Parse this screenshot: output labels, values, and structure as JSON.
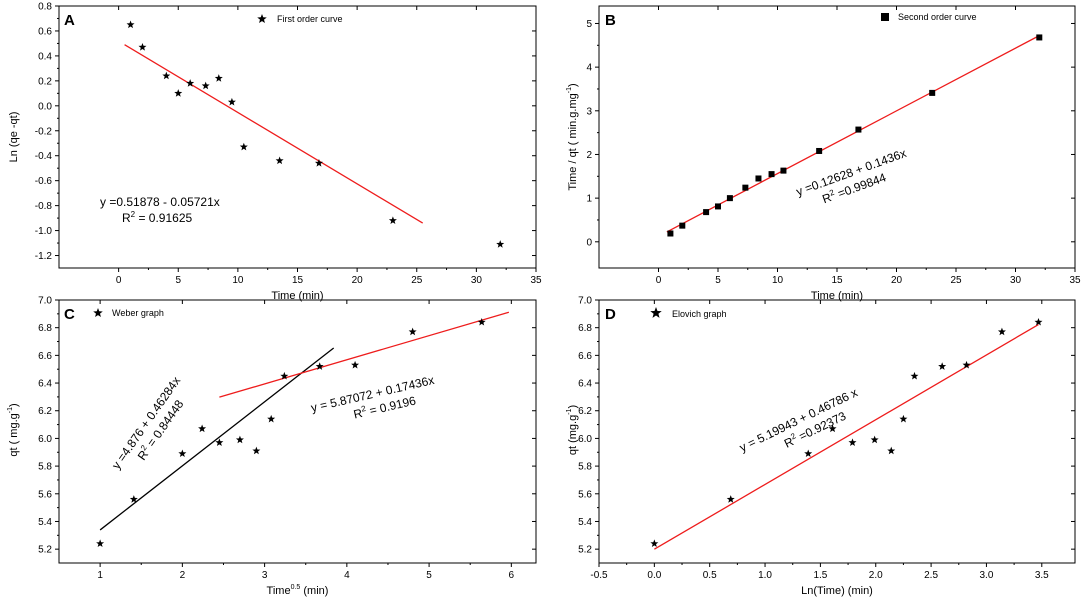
{
  "colors": {
    "fit_red": "#ee1c1c",
    "fit_black": "#000000",
    "axis": "#000000"
  },
  "chart_data": [
    {
      "panel": "A",
      "type": "scatter",
      "legend": "First order curve",
      "legend_marker": "star-icon",
      "xlabel": "Time (min)",
      "ylabel": "Ln (qe -qt)",
      "xlim": [
        -5,
        35
      ],
      "ylim": [
        -1.3,
        0.8
      ],
      "xticks": [
        0,
        5,
        10,
        15,
        20,
        25,
        30,
        35
      ],
      "yticks": [
        -1.2,
        -1.0,
        -0.8,
        -0.6,
        -0.4,
        -0.2,
        0.0,
        0.2,
        0.4,
        0.6,
        0.8
      ],
      "ytick_labels": [
        "-1.2",
        "-1.0",
        "-0.8",
        "-0.6",
        "-0.4",
        "-0.2",
        "0.0",
        "0.2",
        "0.4",
        "0.6",
        "0.8"
      ],
      "marker": "star",
      "points": [
        {
          "x": 1,
          "y": 0.65
        },
        {
          "x": 2,
          "y": 0.47
        },
        {
          "x": 4,
          "y": 0.24
        },
        {
          "x": 5,
          "y": 0.1
        },
        {
          "x": 6,
          "y": 0.18
        },
        {
          "x": 7.3,
          "y": 0.16
        },
        {
          "x": 8.4,
          "y": 0.22
        },
        {
          "x": 9.5,
          "y": 0.03
        },
        {
          "x": 10.5,
          "y": -0.33
        },
        {
          "x": 13.5,
          "y": -0.44
        },
        {
          "x": 16.8,
          "y": -0.46
        },
        {
          "x": 23,
          "y": -0.92
        },
        {
          "x": 32,
          "y": -1.11
        }
      ],
      "fits": [
        {
          "color": "#ee1c1c",
          "intercept": 0.51878,
          "slope": -0.05721,
          "x_range": [
            0.5,
            25.5
          ],
          "eq_line1": "y =0.51878 - 0.05721x",
          "r2_label": "R",
          "r2_sup": "2",
          "r2_value": " = 0.91625",
          "angle": 0
        }
      ]
    },
    {
      "panel": "B",
      "type": "scatter",
      "legend": "Second order curve",
      "legend_marker": "square-icon",
      "xlabel": "Time (min)",
      "ylabel": "Time / qt ( min.g.mg",
      "ylabel_sup": "-1",
      "ylabel_end": ")",
      "xlim": [
        -5,
        35
      ],
      "ylim": [
        -0.6,
        5.4
      ],
      "xticks": [
        0,
        5,
        10,
        15,
        20,
        25,
        30,
        35
      ],
      "yticks": [
        0,
        1,
        2,
        3,
        4,
        5
      ],
      "ytick_labels": [
        "0",
        "1",
        "2",
        "3",
        "4",
        "5"
      ],
      "marker": "square",
      "points": [
        {
          "x": 1,
          "y": 0.19
        },
        {
          "x": 2,
          "y": 0.37
        },
        {
          "x": 4,
          "y": 0.68
        },
        {
          "x": 5,
          "y": 0.81
        },
        {
          "x": 6,
          "y": 1.0
        },
        {
          "x": 7.3,
          "y": 1.24
        },
        {
          "x": 8.4,
          "y": 1.45
        },
        {
          "x": 9.5,
          "y": 1.55
        },
        {
          "x": 10.5,
          "y": 1.63
        },
        {
          "x": 13.5,
          "y": 2.08
        },
        {
          "x": 16.8,
          "y": 2.57
        },
        {
          "x": 23,
          "y": 3.41
        },
        {
          "x": 32,
          "y": 4.68
        }
      ],
      "fits": [
        {
          "color": "#ee1c1c",
          "intercept": 0.12628,
          "slope": 0.1436,
          "x_range": [
            0.7,
            32
          ],
          "eq_line1": "y =0.12628 + 0.1436x",
          "r2_label": "R",
          "r2_sup": "2",
          "r2_value": " =0.99844",
          "angle": -20
        }
      ]
    },
    {
      "panel": "C",
      "type": "scatter",
      "legend": "Weber graph",
      "legend_marker": "star-icon",
      "xlabel": "Time",
      "xlabel_sup": "0.5",
      "xlabel_end": " (min)",
      "ylabel": "qt ( mg.g",
      "ylabel_sup": "-1",
      "ylabel_end": ")",
      "xlim": [
        0.5,
        6.3
      ],
      "ylim": [
        5.1,
        7.0
      ],
      "xticks": [
        1,
        2,
        3,
        4,
        5,
        6
      ],
      "yticks": [
        5.2,
        5.4,
        5.6,
        5.8,
        6.0,
        6.2,
        6.4,
        6.6,
        6.8,
        7.0
      ],
      "ytick_labels": [
        "5.2",
        "5.4",
        "5.6",
        "5.8",
        "6.0",
        "6.2",
        "6.4",
        "6.6",
        "6.8",
        "7.0"
      ],
      "marker": "star",
      "points": [
        {
          "x": 1,
          "y": 5.24
        },
        {
          "x": 1.41,
          "y": 5.56
        },
        {
          "x": 2,
          "y": 5.89
        },
        {
          "x": 2.24,
          "y": 6.07
        },
        {
          "x": 2.45,
          "y": 5.97
        },
        {
          "x": 2.7,
          "y": 5.99
        },
        {
          "x": 2.9,
          "y": 5.91
        },
        {
          "x": 3.08,
          "y": 6.14
        },
        {
          "x": 3.24,
          "y": 6.45
        },
        {
          "x": 3.67,
          "y": 6.52
        },
        {
          "x": 4.1,
          "y": 6.53
        },
        {
          "x": 4.8,
          "y": 6.77
        },
        {
          "x": 5.64,
          "y": 6.84
        }
      ],
      "fits": [
        {
          "color": "#000000",
          "intercept": 4.876,
          "slope": 0.46284,
          "x_range": [
            1.0,
            3.84
          ],
          "eq_line1": "y =4.876 + 0.46284x",
          "r2_label": "R",
          "r2_sup": "2",
          "r2_value": " = 0.84448",
          "angle": -55
        },
        {
          "color": "#ee1c1c",
          "intercept": 5.87072,
          "slope": 0.17436,
          "x_range": [
            2.45,
            5.97
          ],
          "eq_line1": "y = 5.87072 + 0.17436x",
          "r2_label": "R",
          "r2_sup": "2",
          "r2_value": " = 0.9196",
          "angle": -13
        }
      ]
    },
    {
      "panel": "D",
      "type": "scatter",
      "legend": "Elovich graph",
      "legend_marker": "star-icon",
      "xlabel": "Ln(Time) (min)",
      "ylabel": "qt (mg.g",
      "ylabel_sup": "-1",
      "ylabel_end": ")",
      "xlim": [
        -0.5,
        3.8
      ],
      "ylim": [
        5.1,
        7.0
      ],
      "xticks": [
        -0.5,
        0.0,
        0.5,
        1.0,
        1.5,
        2.0,
        2.5,
        3.0,
        3.5
      ],
      "xtick_labels": [
        "-0.5",
        "0.0",
        "0.5",
        "1.0",
        "1.5",
        "2.0",
        "2.5",
        "3.0",
        "3.5"
      ],
      "yticks": [
        5.2,
        5.4,
        5.6,
        5.8,
        6.0,
        6.2,
        6.4,
        6.6,
        6.8,
        7.0
      ],
      "ytick_labels": [
        "5.2",
        "5.4",
        "5.6",
        "5.8",
        "6.0",
        "6.2",
        "6.4",
        "6.6",
        "6.8",
        "7.0"
      ],
      "marker": "star",
      "points": [
        {
          "x": 0,
          "y": 5.24
        },
        {
          "x": 0.69,
          "y": 5.56
        },
        {
          "x": 1.39,
          "y": 5.89
        },
        {
          "x": 1.61,
          "y": 6.07
        },
        {
          "x": 1.79,
          "y": 5.97
        },
        {
          "x": 1.99,
          "y": 5.99
        },
        {
          "x": 2.14,
          "y": 5.91
        },
        {
          "x": 2.25,
          "y": 6.14
        },
        {
          "x": 2.35,
          "y": 6.45
        },
        {
          "x": 2.6,
          "y": 6.52
        },
        {
          "x": 2.82,
          "y": 6.53
        },
        {
          "x": 3.14,
          "y": 6.77
        },
        {
          "x": 3.47,
          "y": 6.84
        }
      ],
      "fits": [
        {
          "color": "#ee1c1c",
          "intercept": 5.19943,
          "slope": 0.46786,
          "x_range": [
            0.0,
            3.47
          ],
          "eq_line1": "y = 5.19943 + 0.46786 x",
          "r2_label": "R",
          "r2_sup": "2",
          "r2_value": " =0.92373",
          "angle": -26
        }
      ]
    }
  ]
}
